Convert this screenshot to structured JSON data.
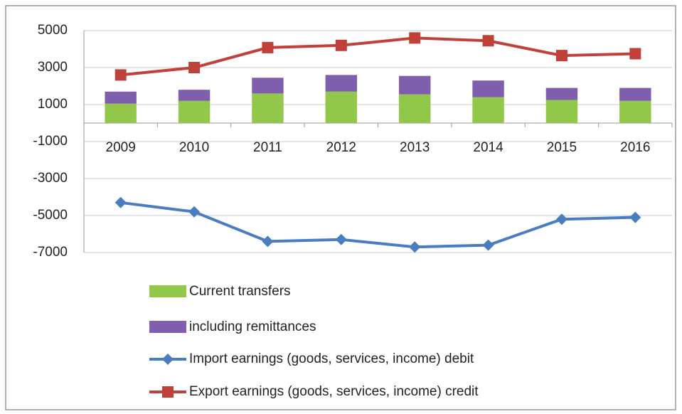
{
  "chart_data": {
    "type": "bar_line",
    "categories": [
      "2009",
      "2010",
      "2011",
      "2012",
      "2013",
      "2014",
      "2015",
      "2016"
    ],
    "series": [
      {
        "name": "Current transfers",
        "type": "bar",
        "color": "#92c84a",
        "values": [
          1050,
          1200,
          1600,
          1700,
          1550,
          1400,
          1250,
          1200
        ]
      },
      {
        "name": "including remittances",
        "type": "bar",
        "color": "#7f5fad",
        "values": [
          650,
          600,
          850,
          900,
          1000,
          900,
          650,
          700
        ]
      },
      {
        "name": "Import earnings (goods, services, income) debit",
        "type": "line",
        "marker": "diamond",
        "color": "#4a7cc0",
        "values": [
          -4300,
          -4800,
          -6400,
          -6300,
          -6700,
          -6600,
          -5200,
          -5100
        ]
      },
      {
        "name": "Export earnings (goods, services, income) credit",
        "type": "line",
        "marker": "square",
        "color": "#c0403a",
        "values": [
          2600,
          3000,
          4080,
          4200,
          4600,
          4450,
          3650,
          3750
        ]
      }
    ],
    "ylim": [
      -7000,
      5000
    ],
    "yticks": [
      5000,
      3000,
      1000,
      -1000,
      -3000,
      -5000,
      -7000
    ],
    "grid": true
  }
}
